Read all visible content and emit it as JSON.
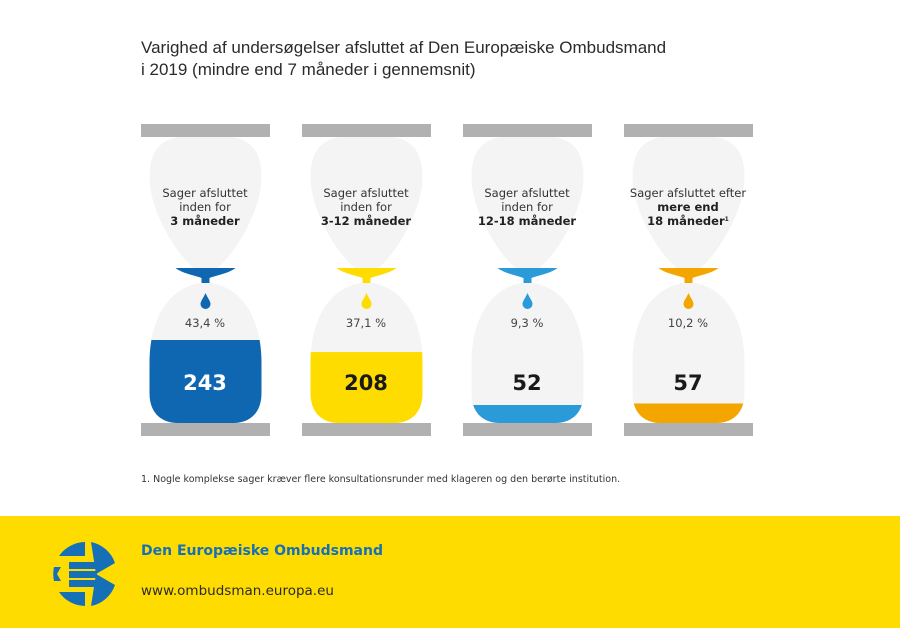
{
  "header": {
    "title_line1": "Varighed af undersøgelser afsluttet af Den Europæiske Ombudsmand",
    "title_line2": "i 2019 (mindre end 7 måneder i gennemsnit)"
  },
  "chart_data": {
    "type": "pictorial-hourglass",
    "title": "Varighed af undersøgelser afsluttet af Den Europæiske Ombudsmand i 2019 (mindre end 7 måneder i gennemsnit)",
    "categories": [
      "3 måneder",
      "3-12 måneder",
      "12-18 måneder",
      "mere end 18 måneder"
    ],
    "values": [
      243,
      208,
      52,
      57
    ],
    "percent": [
      43.4,
      37.1,
      9.3,
      10.2
    ],
    "items": [
      {
        "label_line1": "Sager afsluttet",
        "label_line2": "inden for",
        "label_bold1": "3 måneder",
        "label_bold2": "",
        "footnote_mark": "",
        "percent_text": "43,4 %",
        "count": 243,
        "percent": 43.4,
        "color": "#0f67b1",
        "count_text_light": true
      },
      {
        "label_line1": "Sager afsluttet",
        "label_line2": "inden for",
        "label_bold1": "3-12 måneder",
        "label_bold2": "",
        "footnote_mark": "",
        "percent_text": "37,1 %",
        "count": 208,
        "percent": 37.1,
        "color": "#ffdc00",
        "count_text_light": false
      },
      {
        "label_line1": "Sager afsluttet",
        "label_line2": "inden for",
        "label_bold1": "12-18 måneder",
        "label_bold2": "",
        "footnote_mark": "",
        "percent_text": "9,3 %",
        "count": 52,
        "percent": 9.3,
        "color": "#2a9ad8",
        "count_text_light": false
      },
      {
        "label_line1": "Sager afsluttet efter",
        "label_line2": "",
        "label_bold1": "mere end",
        "label_bold2": "18 måneder",
        "footnote_mark": "1",
        "percent_text": "10,2 %",
        "count": 57,
        "percent": 10.2,
        "color": "#f3a500",
        "count_text_light": false
      }
    ],
    "frame_color": "#b1b1b1",
    "glass_color": "#f4f4f4"
  },
  "footnote": "1. Nogle komplekse sager kræver flere konsultationsrunder med klageren og den berørte institution.",
  "footer": {
    "org_name": "Den Europæiske Ombudsmand",
    "url": "www.ombudsman.europa.eu",
    "background": "#ffdc00",
    "brand_color": "#1570b8"
  }
}
